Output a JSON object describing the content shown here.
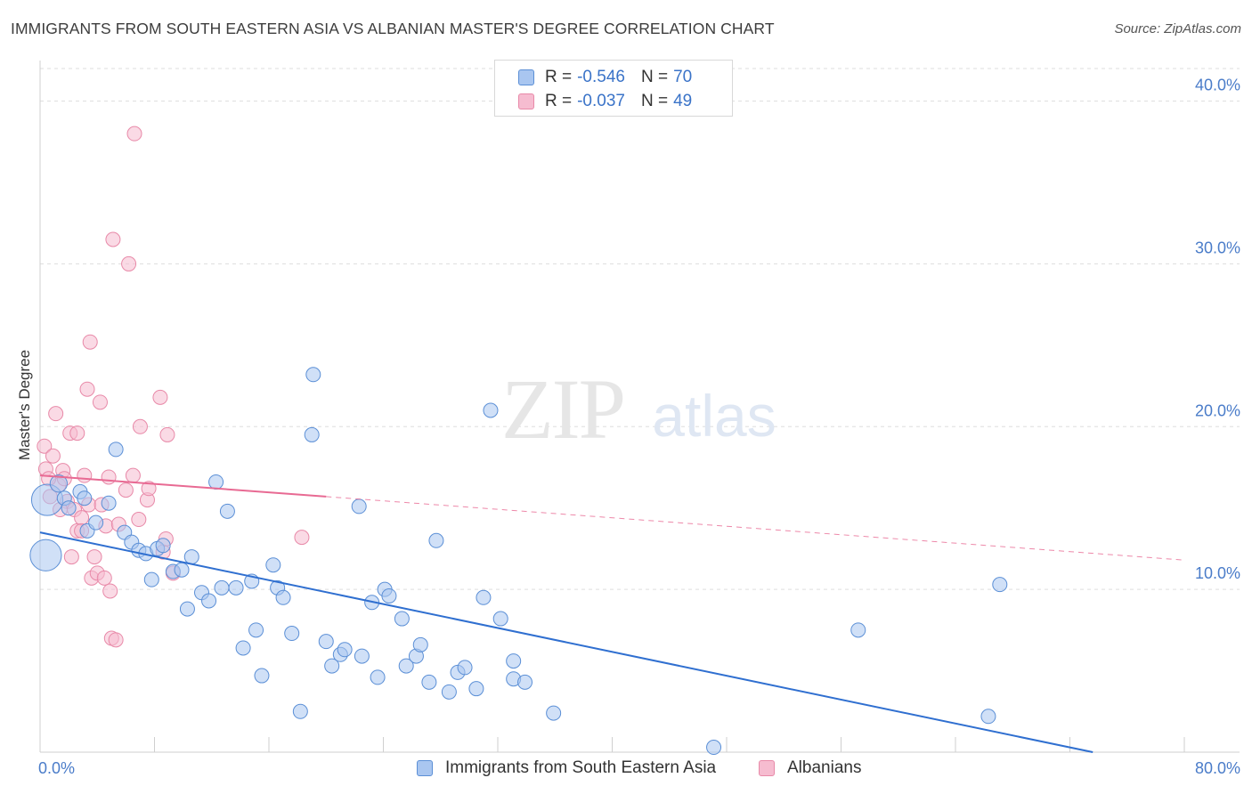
{
  "title": "IMMIGRANTS FROM SOUTH EASTERN ASIA VS ALBANIAN MASTER'S DEGREE CORRELATION CHART",
  "source": "Source: ZipAtlas.com",
  "watermark": {
    "zip": "ZIP",
    "atlas": "atlas"
  },
  "colors": {
    "blue_fill": "#a9c6f0",
    "blue_stroke": "#5b8fd6",
    "blue_line": "#2f6fd0",
    "pink_fill": "#f6bcd0",
    "pink_stroke": "#e889a8",
    "pink_line": "#e86a93",
    "grid": "#dddddd",
    "tick_text": "#4a7cc9"
  },
  "legend": {
    "rows": [
      {
        "r_label": "R =",
        "r_value": "-0.546",
        "n_label": "N =",
        "n_value": "70"
      },
      {
        "r_label": "R =",
        "r_value": "-0.037",
        "n_label": "N =",
        "n_value": "49"
      }
    ]
  },
  "bottom_legend": {
    "items": [
      {
        "label": "Immigrants from South Eastern Asia"
      },
      {
        "label": "Albanians"
      }
    ]
  },
  "chart_data": {
    "type": "scatter",
    "title": "IMMIGRANTS FROM SOUTH EASTERN ASIA VS ALBANIAN MASTER'S DEGREE CORRELATION CHART",
    "xlabel": "",
    "ylabel": "Master's Degree",
    "xlim": [
      0,
      80
    ],
    "ylim": [
      0,
      42
    ],
    "x_tick_labels": [
      "0.0%",
      "80.0%"
    ],
    "y_ticks": [
      10,
      20,
      30,
      40
    ],
    "y_tick_labels": [
      "10.0%",
      "20.0%",
      "30.0%",
      "40.0%"
    ],
    "grid": true,
    "legend_position": "top-center",
    "series": [
      {
        "name": "Immigrants from South Eastern Asia",
        "r": -0.546,
        "n": 70,
        "trend": {
          "x": [
            0,
            73.6
          ],
          "y": [
            13.5,
            0
          ]
        },
        "points": [
          [
            0.5,
            15.5,
            2.2
          ],
          [
            0.4,
            12.1,
            2.2
          ],
          [
            1.3,
            16.5,
            1.2
          ],
          [
            1.7,
            15.6,
            1
          ],
          [
            2.0,
            15.0,
            1
          ],
          [
            2.8,
            16.0,
            1
          ],
          [
            3.3,
            13.6,
            1
          ],
          [
            3.9,
            14.1,
            1
          ],
          [
            4.8,
            15.3,
            1
          ],
          [
            5.3,
            18.6,
            1
          ],
          [
            5.9,
            13.5,
            1
          ],
          [
            6.4,
            12.9,
            1
          ],
          [
            6.9,
            12.4,
            1
          ],
          [
            7.4,
            12.2,
            1
          ],
          [
            7.8,
            10.6,
            1
          ],
          [
            8.2,
            12.5,
            1
          ],
          [
            8.6,
            12.7,
            1
          ],
          [
            9.3,
            11.1,
            1
          ],
          [
            9.9,
            11.2,
            1
          ],
          [
            10.3,
            8.8,
            1
          ],
          [
            10.6,
            12.0,
            1
          ],
          [
            11.3,
            9.8,
            1
          ],
          [
            11.8,
            9.3,
            1
          ],
          [
            12.3,
            16.6,
            1
          ],
          [
            12.7,
            10.1,
            1
          ],
          [
            13.1,
            14.8,
            1
          ],
          [
            13.7,
            10.1,
            1
          ],
          [
            14.2,
            6.4,
            1
          ],
          [
            14.8,
            10.5,
            1
          ],
          [
            15.1,
            7.5,
            1
          ],
          [
            15.5,
            4.7,
            1
          ],
          [
            16.3,
            11.5,
            1
          ],
          [
            16.6,
            10.1,
            1
          ],
          [
            17.0,
            9.5,
            1
          ],
          [
            17.6,
            7.3,
            1
          ],
          [
            18.2,
            2.5,
            1
          ],
          [
            19.0,
            19.5,
            1
          ],
          [
            19.1,
            23.2,
            1
          ],
          [
            20.0,
            6.8,
            1
          ],
          [
            20.4,
            5.3,
            1
          ],
          [
            21.0,
            6.0,
            1
          ],
          [
            21.3,
            6.3,
            1
          ],
          [
            22.3,
            15.1,
            1
          ],
          [
            22.5,
            5.9,
            1
          ],
          [
            23.2,
            9.2,
            1
          ],
          [
            23.6,
            4.6,
            1
          ],
          [
            24.1,
            10.0,
            1
          ],
          [
            24.4,
            9.6,
            1
          ],
          [
            25.3,
            8.2,
            1
          ],
          [
            25.6,
            5.3,
            1
          ],
          [
            26.3,
            5.9,
            1
          ],
          [
            26.6,
            6.6,
            1
          ],
          [
            27.2,
            4.3,
            1
          ],
          [
            27.7,
            13.0,
            1
          ],
          [
            28.6,
            3.7,
            1
          ],
          [
            29.2,
            4.9,
            1
          ],
          [
            29.7,
            5.2,
            1
          ],
          [
            30.5,
            3.9,
            1
          ],
          [
            31.0,
            9.5,
            1
          ],
          [
            31.5,
            21.0,
            1
          ],
          [
            32.2,
            8.2,
            1
          ],
          [
            33.1,
            4.5,
            1
          ],
          [
            33.1,
            5.6,
            1
          ],
          [
            33.9,
            4.3,
            1
          ],
          [
            35.9,
            2.4,
            1
          ],
          [
            47.1,
            0.3,
            1
          ],
          [
            57.2,
            7.5,
            1
          ],
          [
            66.3,
            2.2,
            1
          ],
          [
            67.1,
            10.3,
            1
          ],
          [
            3.1,
            15.6,
            1
          ]
        ]
      },
      {
        "name": "Albanians",
        "r": -0.037,
        "n": 49,
        "trend": {
          "x": [
            0,
            20
          ],
          "y": [
            17.0,
            15.7
          ]
        },
        "trend_dashed": {
          "x": [
            20,
            80
          ],
          "y": [
            15.7,
            11.8
          ]
        },
        "points": [
          [
            0.3,
            18.8,
            1
          ],
          [
            0.4,
            17.4,
            1
          ],
          [
            0.7,
            15.7,
            1
          ],
          [
            0.9,
            18.2,
            1
          ],
          [
            1.1,
            20.8,
            1
          ],
          [
            1.3,
            16.4,
            1
          ],
          [
            1.6,
            17.3,
            1
          ],
          [
            1.7,
            16.8,
            1
          ],
          [
            1.9,
            15.4,
            1
          ],
          [
            2.2,
            12.0,
            1
          ],
          [
            2.1,
            19.6,
            1
          ],
          [
            2.4,
            14.9,
            1
          ],
          [
            2.6,
            13.6,
            1
          ],
          [
            2.9,
            14.4,
            1
          ],
          [
            2.9,
            13.6,
            1
          ],
          [
            3.1,
            17.0,
            1
          ],
          [
            3.3,
            22.3,
            1
          ],
          [
            3.4,
            15.2,
            1
          ],
          [
            3.5,
            25.2,
            1
          ],
          [
            3.6,
            10.7,
            1
          ],
          [
            3.8,
            12.0,
            1
          ],
          [
            4.0,
            11.0,
            1
          ],
          [
            4.2,
            21.5,
            1
          ],
          [
            4.3,
            15.2,
            1
          ],
          [
            4.5,
            10.7,
            1
          ],
          [
            4.6,
            13.9,
            1
          ],
          [
            4.8,
            16.9,
            1
          ],
          [
            4.9,
            9.9,
            1
          ],
          [
            5.0,
            7.0,
            1
          ],
          [
            5.1,
            31.5,
            1
          ],
          [
            5.3,
            6.9,
            1
          ],
          [
            5.5,
            14.0,
            1
          ],
          [
            6.0,
            16.1,
            1
          ],
          [
            6.2,
            30.0,
            1
          ],
          [
            6.5,
            17.0,
            1
          ],
          [
            6.6,
            38.0,
            1
          ],
          [
            6.9,
            14.3,
            1
          ],
          [
            7.0,
            20.0,
            1
          ],
          [
            7.5,
            15.5,
            1
          ],
          [
            7.6,
            16.2,
            1
          ],
          [
            8.4,
            21.8,
            1
          ],
          [
            8.6,
            12.3,
            1
          ],
          [
            8.8,
            13.1,
            1
          ],
          [
            8.9,
            19.5,
            1
          ],
          [
            9.3,
            11.0,
            1
          ],
          [
            18.3,
            13.2,
            1
          ],
          [
            2.6,
            19.6,
            1
          ],
          [
            1.4,
            14.9,
            1
          ],
          [
            0.6,
            16.8,
            1
          ]
        ]
      }
    ]
  }
}
